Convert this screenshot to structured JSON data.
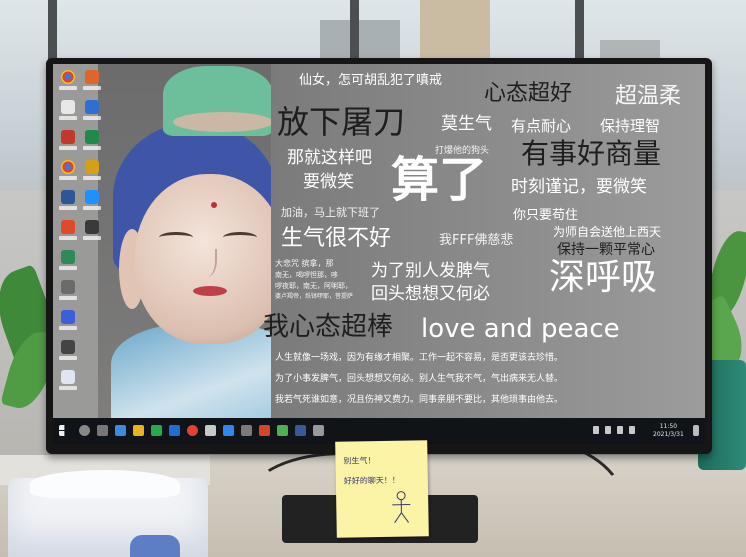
{
  "screen": {
    "phrases": [
      {
        "text": "仙女，怎可胡乱犯了嗔戒",
        "tone": "w"
      },
      {
        "text": "心态超好",
        "tone": "b"
      },
      {
        "text": "超温柔",
        "tone": "w"
      },
      {
        "text": "放下屠刀",
        "tone": "b"
      },
      {
        "text": "莫生气",
        "tone": "w"
      },
      {
        "text": "有点耐心",
        "tone": "w"
      },
      {
        "text": "保持理智",
        "tone": "w"
      },
      {
        "text": "那就这样吧",
        "tone": "w"
      },
      {
        "text": "打爆他的狗头",
        "tone": "f"
      },
      {
        "text": "有事好商量",
        "tone": "b"
      },
      {
        "text": "要微笑",
        "tone": "w"
      },
      {
        "text": "算了",
        "tone": "w"
      },
      {
        "text": "时刻谨记，要微笑",
        "tone": "w"
      },
      {
        "text": "加油，马上就下班了",
        "tone": "f"
      },
      {
        "text": "你只要苟住",
        "tone": "w"
      },
      {
        "text": "为师自会送他上西天",
        "tone": "w"
      },
      {
        "text": "生气很不好",
        "tone": "w"
      },
      {
        "text": "我FFF佛慈悲",
        "tone": "f"
      },
      {
        "text": "保持一颗平常心",
        "tone": "b"
      },
      {
        "text": "大悲咒 摈拿，那",
        "tone": "f"
      },
      {
        "text": "南无，喝啰怛那，哆",
        "tone": "f"
      },
      {
        "text": "啰夜耶，南无，阿唎耶，",
        "tone": "f"
      },
      {
        "text": "婆卢羯帝，烁钵啰耶，菩提萨",
        "tone": "f"
      },
      {
        "text": "为了别人发脾气",
        "tone": "w"
      },
      {
        "text": "深呼吸",
        "tone": "w"
      },
      {
        "text": "回头想想又何必",
        "tone": "w"
      },
      {
        "text": "我心态超棒",
        "tone": "b"
      },
      {
        "text": "love and peace",
        "tone": "w"
      },
      {
        "text": "人生就像一场戏，因为有缘才相聚。工作一起不容易，是否更该去珍惜。",
        "tone": "w"
      },
      {
        "text": "为了小事发脾气，回头想想又何必。别人生气我不气，气出病来无人替。",
        "tone": "w"
      },
      {
        "text": "我若气死谁如意，况且伤神又费力。同事亲朋不要比，其他琐事由他去。",
        "tone": "w"
      }
    ],
    "taskbar_time": "11:50",
    "taskbar_date": "2021/3/31"
  },
  "sticky_note": {
    "line1": "别生气！",
    "line2": "好好的聊天！！"
  },
  "colors": {
    "screen_text_white": "#ffffff",
    "screen_text_dark": "#1e1e1e",
    "robe_blue": "#6aa7c9",
    "hair_blue": "#3f55a8",
    "sticky_yellow": "#fbf3a6"
  }
}
